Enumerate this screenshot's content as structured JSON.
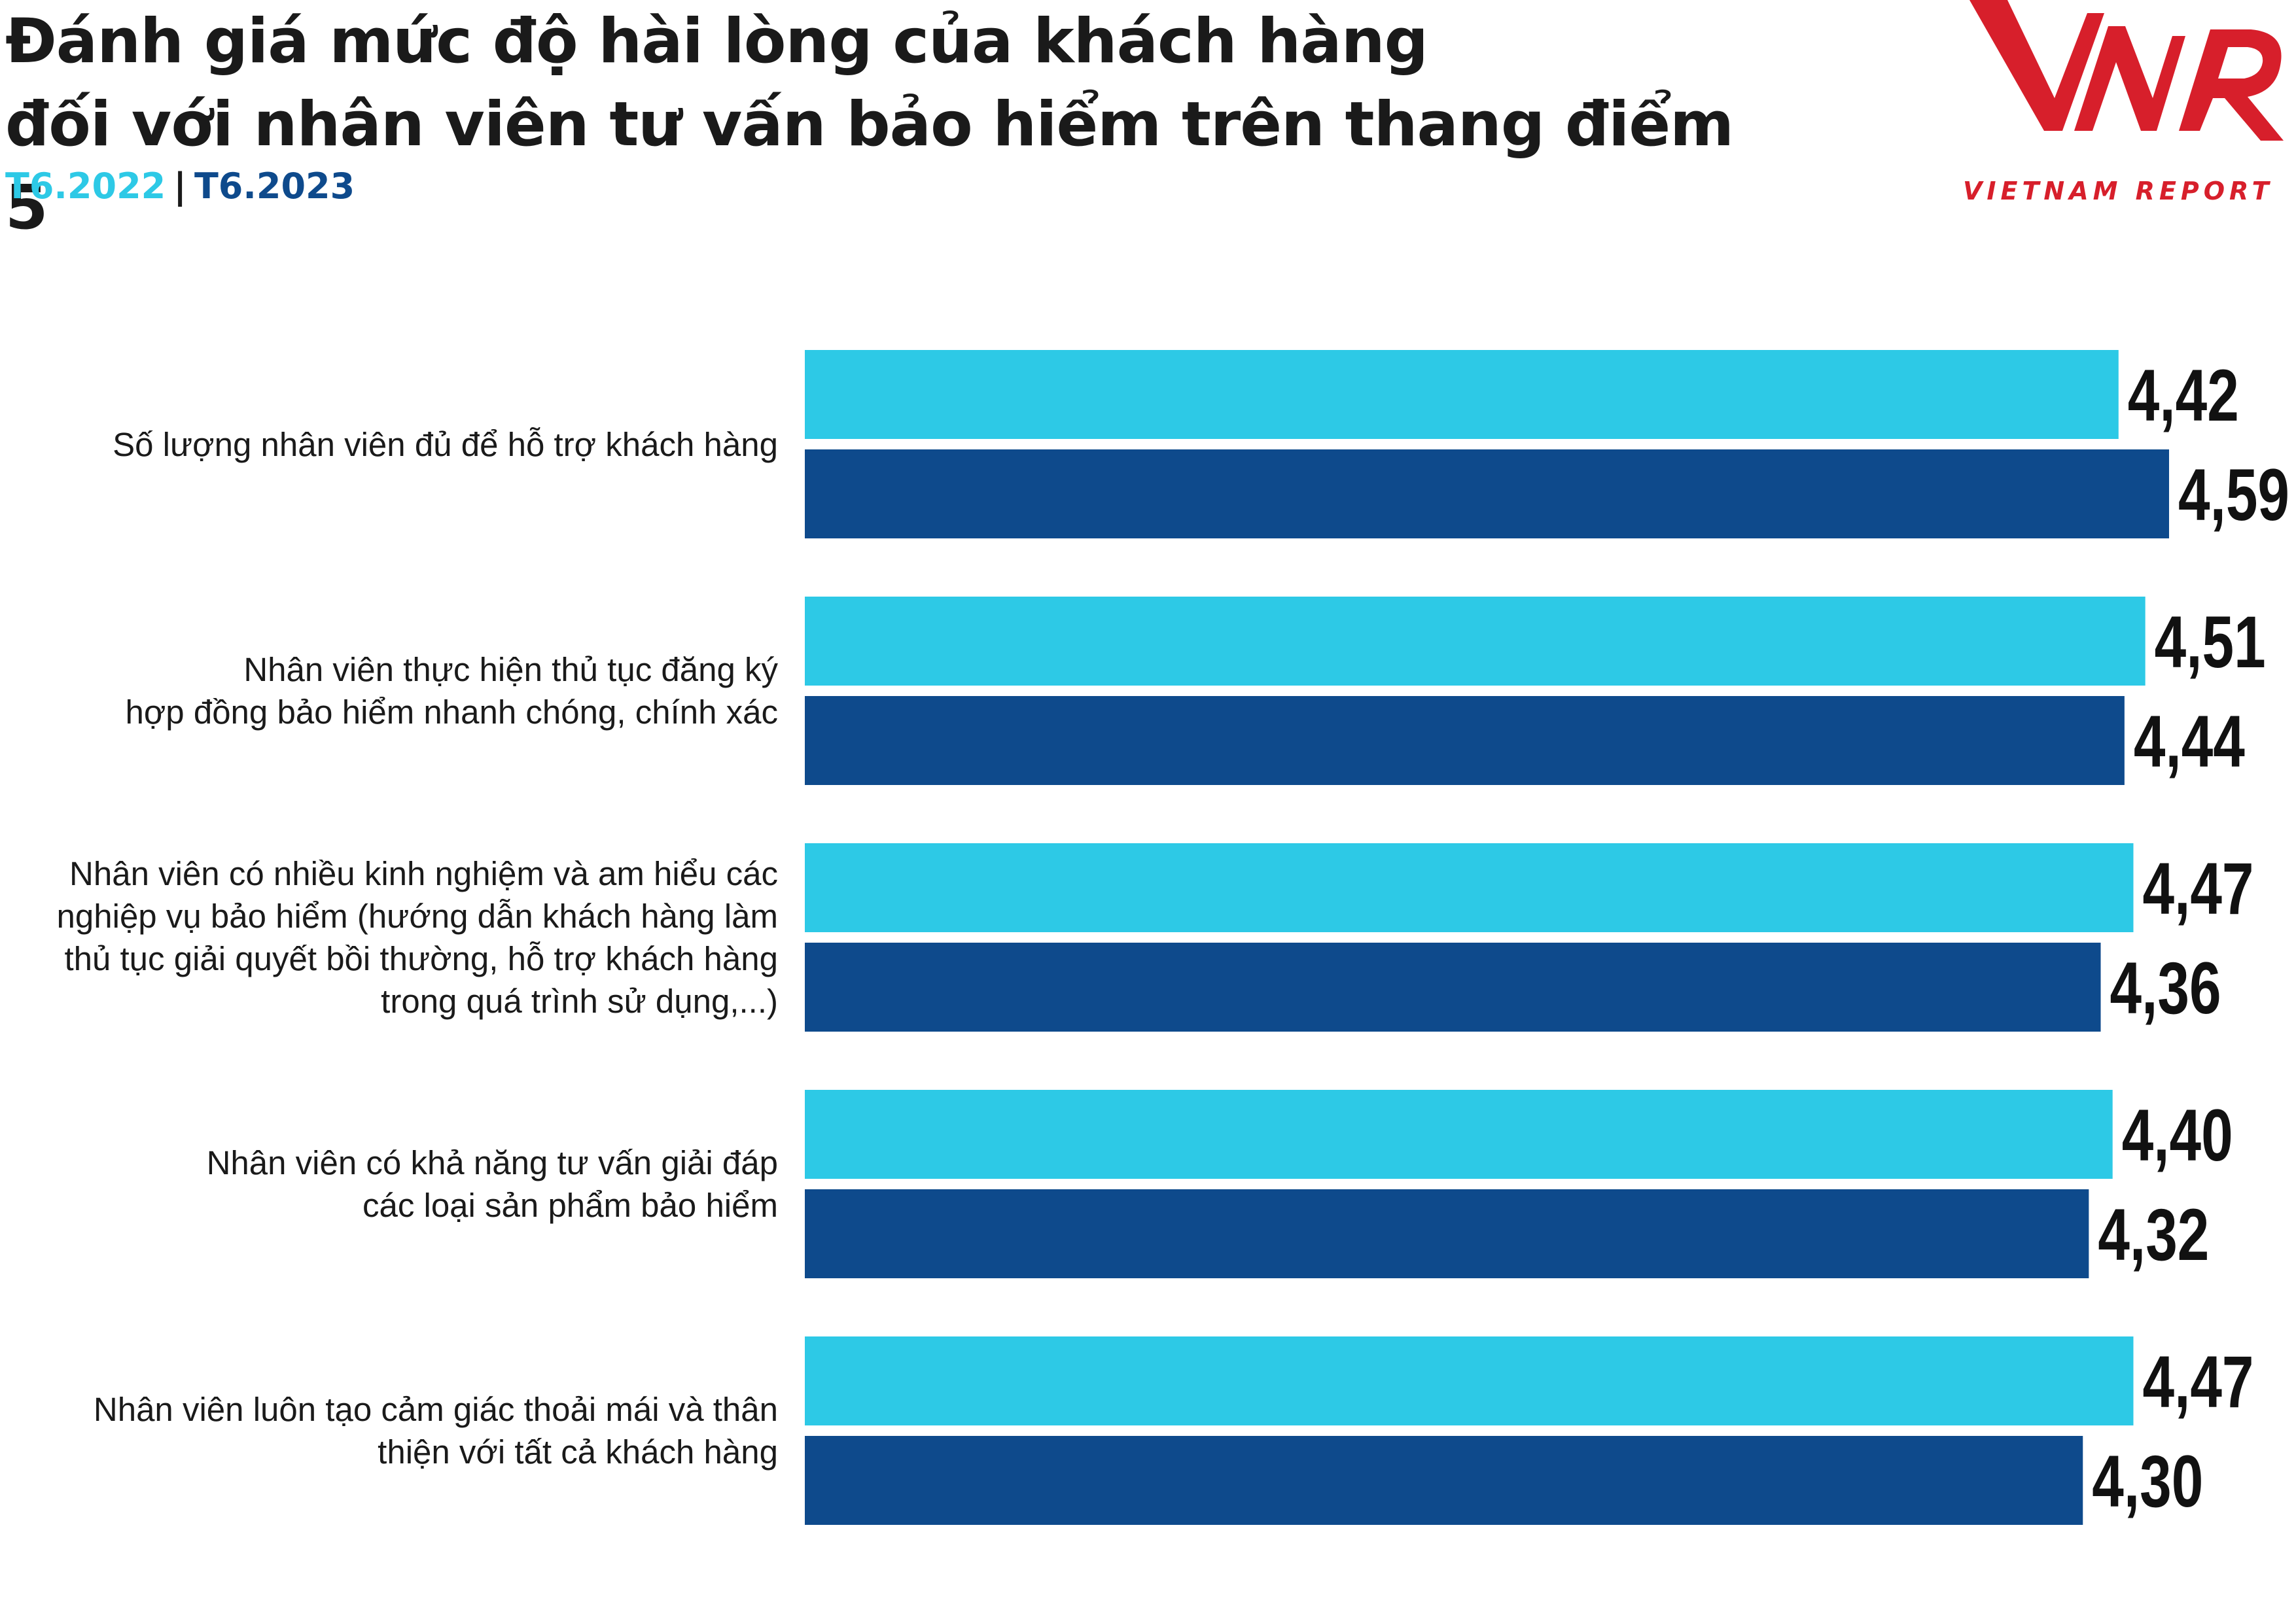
{
  "title_lines": [
    "Đánh giá mức độ hài lòng của khách hàng",
    "đối với nhân viên tư vấn bảo hiểm trên thang điểm 5"
  ],
  "legend": {
    "series1": "T6.2022",
    "separator": "|",
    "series2": "T6.2023"
  },
  "logo": {
    "mark": "VNR",
    "caption": "VIETNAM REPORT"
  },
  "colors": {
    "series1": "#2dc9e6",
    "series2": "#0e4a8c",
    "logo": "#d71f2b"
  },
  "chart_data": {
    "type": "bar",
    "orientation": "horizontal",
    "categories": [
      [
        "Số lượng nhân viên đủ để hỗ trợ khách hàng"
      ],
      [
        "Nhân viên thực hiện thủ tục đăng ký",
        "hợp đồng bảo hiểm nhanh chóng, chính xác"
      ],
      [
        "Nhân viên có nhiều kinh nghiệm và am hiểu các",
        "nghiệp vụ bảo hiểm (hướng dẫn khách hàng làm",
        "thủ tục giải quyết bồi thường, hỗ trợ khách hàng",
        "trong quá trình sử dụng,...)"
      ],
      [
        "Nhân viên có khả năng tư vấn giải đáp",
        "các loại sản phẩm bảo hiểm"
      ],
      [
        "Nhân viên luôn tạo cảm giác thoải mái và thân",
        "thiện với tất cả khách hàng"
      ]
    ],
    "series": [
      {
        "name": "T6.2022",
        "values": [
          4.42,
          4.51,
          4.47,
          4.4,
          4.47
        ],
        "labels": [
          "4,42",
          "4,51",
          "4,47",
          "4,40",
          "4,47"
        ]
      },
      {
        "name": "T6.2023",
        "values": [
          4.59,
          4.44,
          4.36,
          4.32,
          4.3
        ],
        "labels": [
          "4,59",
          "4,44",
          "4,36",
          "4,32",
          "4,30"
        ]
      }
    ]
  }
}
